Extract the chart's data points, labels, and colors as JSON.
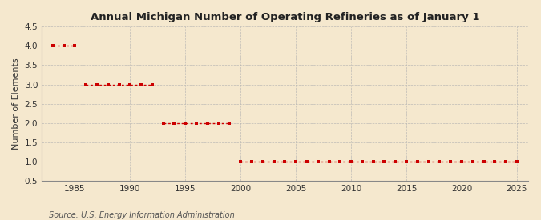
{
  "title": "Annual Michigan Number of Operating Refineries as of January 1",
  "ylabel": "Number of Elements",
  "source": "Source: U.S. Energy Information Administration",
  "background_color": "#f5e8ce",
  "plot_background_color": "#f5e8ce",
  "line_color": "#cc0000",
  "grid_color": "#b0b0b0",
  "xlim": [
    1982,
    2026
  ],
  "ylim": [
    0.5,
    4.5
  ],
  "xticks": [
    1985,
    1990,
    1995,
    2000,
    2005,
    2010,
    2015,
    2020,
    2025
  ],
  "yticks": [
    0.5,
    1.0,
    1.5,
    2.0,
    2.5,
    3.0,
    3.5,
    4.0,
    4.5
  ],
  "data": {
    "1983": 4,
    "1984": 4,
    "1985": 4,
    "1986": 3,
    "1987": 3,
    "1988": 3,
    "1989": 3,
    "1990": 3,
    "1991": 3,
    "1992": 3,
    "1993": 2,
    "1994": 2,
    "1995": 2,
    "1996": 2,
    "1997": 2,
    "1998": 2,
    "1999": 2,
    "2000": 1,
    "2001": 1,
    "2002": 1,
    "2003": 1,
    "2004": 1,
    "2005": 1,
    "2006": 1,
    "2007": 1,
    "2008": 1,
    "2009": 1,
    "2010": 1,
    "2011": 1,
    "2012": 1,
    "2013": 1,
    "2014": 1,
    "2015": 1,
    "2016": 1,
    "2017": 1,
    "2018": 1,
    "2019": 1,
    "2020": 1,
    "2021": 1,
    "2022": 1,
    "2023": 1,
    "2024": 1,
    "2025": 1
  }
}
